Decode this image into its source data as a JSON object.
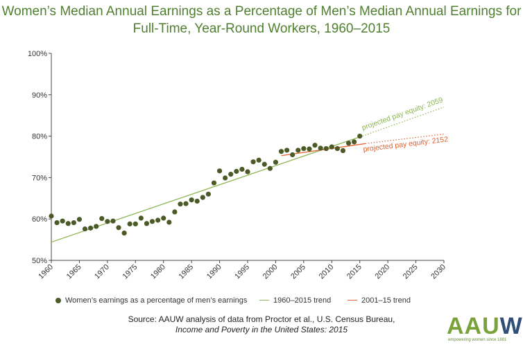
{
  "title_line1": "Women’s Median Annual Earnings as a Percentage of Men’s Median Annual Earnings for",
  "title_line2": "Full-Time, Year-Round Workers, 1960–2015",
  "legend": {
    "points": "Women’s earnings as a percentage of men’s earnings",
    "trend_long": "1960–2015 trend",
    "trend_short": "2001–15 trend"
  },
  "source_line1": "Source: AAUW analysis of data from Proctor et al., U.S. Census Bureau,",
  "source_line2": "Income and Poverty in the United States: 2015",
  "logo": {
    "text_main": "AAU",
    "text_last": "W",
    "tagline": "empowering women since 1881"
  },
  "colors": {
    "points": "#4b5a26",
    "trend_long": "#8db553",
    "trend_short": "#e0612e",
    "title": "#4f7f2f"
  },
  "chart_data": {
    "type": "scatter",
    "x": [
      1960,
      1961,
      1962,
      1963,
      1964,
      1965,
      1966,
      1967,
      1968,
      1969,
      1970,
      1971,
      1972,
      1973,
      1974,
      1975,
      1976,
      1977,
      1978,
      1979,
      1980,
      1981,
      1982,
      1983,
      1984,
      1985,
      1986,
      1987,
      1988,
      1989,
      1990,
      1991,
      1992,
      1993,
      1994,
      1995,
      1996,
      1997,
      1998,
      1999,
      2000,
      2001,
      2002,
      2003,
      2004,
      2005,
      2006,
      2007,
      2008,
      2009,
      2010,
      2011,
      2012,
      2013,
      2014,
      2015
    ],
    "series": [
      {
        "name": "Women’s earnings as a percentage of men’s earnings",
        "values": [
          60.7,
          59.1,
          59.5,
          58.9,
          59.1,
          59.9,
          57.6,
          57.8,
          58.2,
          60.1,
          59.4,
          59.5,
          57.9,
          56.6,
          58.8,
          58.8,
          60.2,
          58.9,
          59.4,
          59.7,
          60.2,
          59.2,
          61.7,
          63.6,
          63.7,
          64.6,
          64.3,
          65.2,
          66.0,
          68.7,
          71.6,
          69.9,
          70.8,
          71.5,
          72.0,
          71.4,
          73.8,
          74.2,
          73.2,
          72.2,
          73.7,
          76.3,
          76.6,
          75.5,
          76.6,
          77.0,
          76.9,
          77.8,
          77.1,
          77.0,
          77.4,
          77.0,
          76.5,
          78.3,
          78.6,
          80.0
        ]
      }
    ],
    "trends": [
      {
        "name": "1960–2015 trend",
        "x": [
          1960,
          2015
        ],
        "y": [
          54.4,
          79.8
        ]
      },
      {
        "name": "2001–15 trend",
        "x": [
          2001,
          2016
        ],
        "y": [
          75.3,
          78.2
        ]
      }
    ],
    "projections": [
      {
        "label": "projected pay equity: 2059",
        "x": [
          2015,
          2030
        ],
        "y": [
          79.8,
          87.0
        ]
      },
      {
        "label": "projected pay equity: 2152",
        "x": [
          2016,
          2030
        ],
        "y": [
          78.2,
          80.5
        ]
      }
    ],
    "xlim": [
      1960,
      2030
    ],
    "ylim": [
      50,
      100
    ],
    "xticks": [
      1960,
      1965,
      1970,
      1975,
      1980,
      1985,
      1990,
      1995,
      2000,
      2005,
      2010,
      2015,
      2020,
      2025,
      2030
    ],
    "yticks": [
      50,
      60,
      70,
      80,
      90,
      100
    ],
    "ytick_labels": [
      "50%",
      "60%",
      "70%",
      "80%",
      "90%",
      "100%"
    ],
    "grid": false,
    "legend_position": "bottom"
  }
}
